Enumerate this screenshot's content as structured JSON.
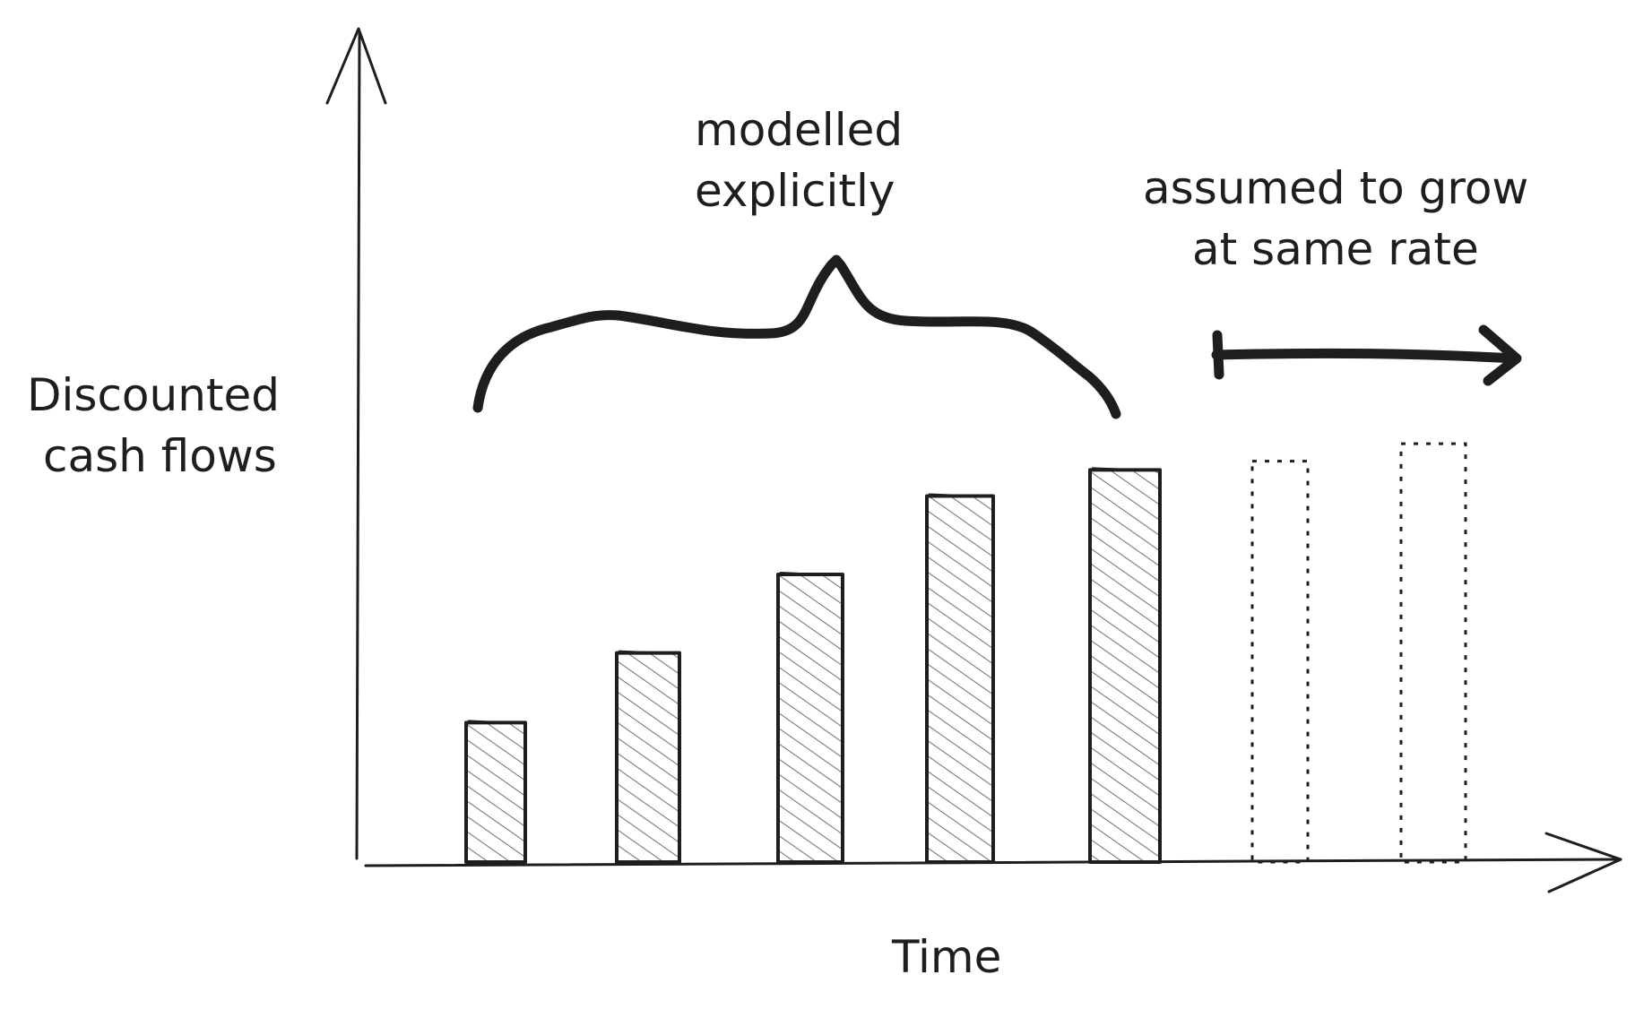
{
  "chart_data": {
    "type": "bar",
    "xlabel": "Time",
    "ylabel": "Discounted cash flows",
    "ylabel_lines": [
      "Discounted",
      "cash flows"
    ],
    "series": [
      {
        "values": [
          1.6,
          2.4,
          3.3,
          4.2,
          4.5
        ],
        "style": "hatched"
      },
      {
        "values": [
          4.6,
          4.8
        ],
        "style": "dotted"
      }
    ],
    "annotations": [
      {
        "text_lines": [
          "modelled",
          "explicitly"
        ],
        "applies_to": "hatched bars"
      },
      {
        "text_lines": [
          "assumed to grow",
          "at same rate"
        ],
        "applies_to": "dotted bars"
      }
    ],
    "grid": false,
    "ylim": [
      0,
      9.5
    ]
  },
  "colors": {
    "ink": "#1e1e1e",
    "hatch": "#7a7a7a",
    "bar_fill": "#ededed"
  }
}
